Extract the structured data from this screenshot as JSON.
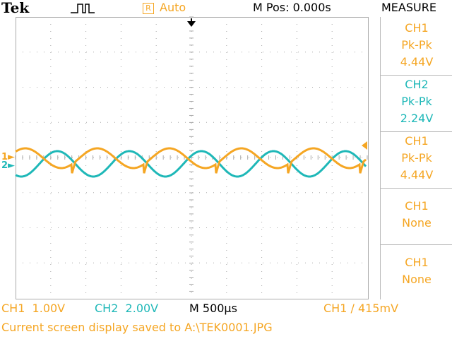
{
  "header": {
    "brand": "Tek",
    "trigger_mode_icon": "R",
    "trigger_mode": "Auto",
    "position": "M Pos: 0.000s",
    "menu_title": "MEASURE"
  },
  "measurements": [
    {
      "channel": "CH1",
      "type": "Pk-Pk",
      "value": "4.44V",
      "color": "#f5a623"
    },
    {
      "channel": "CH2",
      "type": "Pk-Pk",
      "value": "2.24V",
      "color": "#1fb8b8"
    },
    {
      "channel": "CH1",
      "type": "Pk-Pk",
      "value": "4.44V",
      "color": "#f5a623"
    },
    {
      "channel": "CH1",
      "type": "None",
      "value": "",
      "color": "#f5a623"
    },
    {
      "channel": "CH1",
      "type": "None",
      "value": "",
      "color": "#f5a623"
    }
  ],
  "status": {
    "ch1_scale": "CH1  1.00V",
    "ch2_scale": "CH2  2.00V",
    "timebase": "M 500µs",
    "trigger": "CH1 ∕ 415mV",
    "message": "Current screen display saved to A:\\TEK0001.JPG"
  },
  "markers": {
    "ch1": "1",
    "ch2": "2"
  },
  "colors": {
    "ch1": "#f5a623",
    "ch2": "#1fb8b8",
    "grid": "#aaaaaa"
  },
  "icons": {
    "acquire": "pulse-icon",
    "trigger_position": "down-arrow-icon",
    "trigger_level": "left-arrow-icon"
  }
}
